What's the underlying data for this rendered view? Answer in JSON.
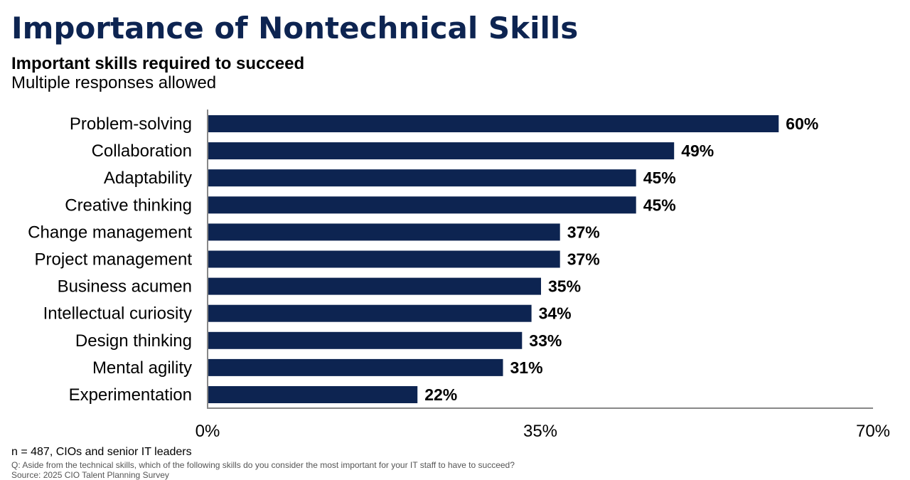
{
  "colors": {
    "title": "#0d2451",
    "bar": "#0d2451",
    "axis": "#888888",
    "text": "#000000"
  },
  "footnote": "n = 487, CIOs and senior IT leaders",
  "question": "Q: Aside from the technical skills, which of the following skills do you consider the most important for your IT staff to have to succeed?",
  "source": "Source: 2025 CIO Talent Planning Survey",
  "chart_data": {
    "type": "bar",
    "orientation": "horizontal",
    "title": "Importance of Nontechnical Skills",
    "subtitle": "Important skills required to succeed",
    "note": "Multiple responses allowed",
    "categories": [
      "Problem-solving",
      "Collaboration",
      "Adaptability",
      "Creative thinking",
      "Change management",
      "Project management",
      "Business acumen",
      "Intellectual curiosity",
      "Design thinking",
      "Mental agility",
      "Experimentation"
    ],
    "values": [
      60,
      49,
      45,
      45,
      37,
      37,
      35,
      34,
      33,
      31,
      22
    ],
    "value_labels": [
      "60%",
      "49%",
      "45%",
      "45%",
      "37%",
      "37%",
      "35%",
      "34%",
      "33%",
      "31%",
      "22%"
    ],
    "xlim": [
      0,
      70
    ],
    "xticks": [
      0,
      35,
      70
    ],
    "xtick_labels": [
      "0%",
      "35%",
      "70%"
    ],
    "xlabel": "",
    "ylabel": "",
    "grid": false,
    "legend": "none"
  }
}
